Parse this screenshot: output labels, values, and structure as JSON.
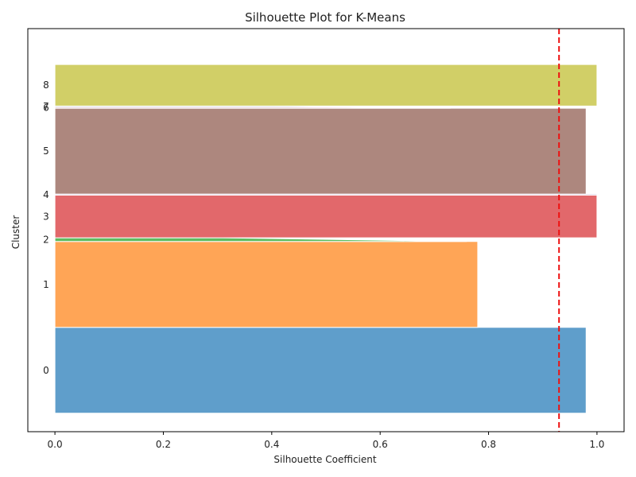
{
  "chart_data": {
    "type": "bar",
    "title": "Silhouette Plot for K-Means",
    "xlabel": "Silhouette Coefficient",
    "ylabel": "Cluster",
    "xlim": [
      -0.05,
      1.05
    ],
    "ylim": [
      -35,
      730
    ],
    "xticks": [
      "0.0",
      "0.2",
      "0.4",
      "0.6",
      "0.8",
      "1.0"
    ],
    "xtick_values": [
      0.0,
      0.2,
      0.4,
      0.6,
      0.8,
      1.0
    ],
    "average_score": 0.93,
    "average_line_color": "#ee1111",
    "clusters": [
      {
        "label": "0",
        "start": 0,
        "end": 163,
        "top": 0.98,
        "min": 0.98,
        "color": "#5f9ecb"
      },
      {
        "label": "1",
        "start": 163,
        "end": 326,
        "top": 0.78,
        "min": 0.78,
        "color": "#ffa556"
      },
      {
        "label": "2",
        "start": 326,
        "end": 333,
        "top": 0.76,
        "min": 0.31,
        "color": "#5fbb5f"
      },
      {
        "label": "3",
        "start": 333,
        "end": 414,
        "top": 1.0,
        "min": 1.0,
        "color": "#e2686b"
      },
      {
        "label": "4",
        "start": 414,
        "end": 416,
        "top": 1.0,
        "min": 1.0,
        "color": "#a787c5"
      },
      {
        "label": "5",
        "start": 416,
        "end": 579,
        "top": 0.98,
        "min": 0.98,
        "color": "#ad877e"
      },
      {
        "label": "6",
        "start": 579,
        "end": 581,
        "top": 0.73,
        "min": 0.5,
        "color": "#e6a0cf"
      },
      {
        "label": "7",
        "start": 581,
        "end": 583,
        "top": 0.72,
        "min": 0.4,
        "color": "#999999"
      },
      {
        "label": "8",
        "start": 583,
        "end": 662,
        "top": 1.0,
        "min": 1.0,
        "color": "#d1cf67"
      }
    ]
  }
}
